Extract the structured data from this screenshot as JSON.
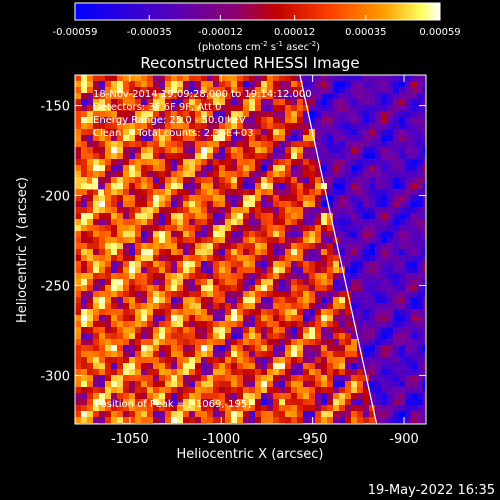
{
  "colorbar": {
    "ticks": [
      "-0.00059",
      "-0.00035",
      "-0.00012",
      "0.00012",
      "0.00035",
      "0.00059"
    ],
    "unit_prefix": "(photons cm",
    "unit_exp1": "-2",
    "unit_mid": " s",
    "unit_exp2": "-1",
    "unit_mid2": " asec",
    "unit_exp3": "-2",
    "unit_suffix": ")"
  },
  "chart_data": {
    "type": "heatmap",
    "title": "Reconstructed RHESSI Image",
    "xlabel": "Heliocentric X (arcsec)",
    "ylabel": "Heliocentric Y (arcsec)",
    "xlim": [
      -1080,
      -888
    ],
    "ylim": [
      -327,
      -133
    ],
    "x_ticks": [
      "-1050",
      "-1000",
      "-950",
      "-900"
    ],
    "x_tick_values": [
      -1050,
      -1000,
      -950,
      -900
    ],
    "y_ticks": [
      "-150",
      "-200",
      "-250",
      "-300"
    ],
    "y_tick_values": [
      -150,
      -200,
      -250,
      -300
    ],
    "value_range": [
      -0.00059,
      0.00059
    ],
    "peak": {
      "x": -1069,
      "y": -195
    },
    "limb_line": {
      "points": [
        [
          -957,
          -133
        ],
        [
          -915,
          -327
        ]
      ]
    },
    "info_lines": [
      "18-Nov-2014 19:09:28.000 to 19:14:12.000",
      "Detectors: 3F 6F 9F, Att 0",
      "Energy Range: 25.0 - 50.0 keV",
      "Clean     Total counts: 2.36E+03"
    ],
    "peak_label": "Position of Peak = [-1069,-195]",
    "colors": [
      "#0000ff",
      "#4b00c8",
      "#7a009a",
      "#c00000",
      "#ff5000",
      "#ffa000",
      "#ffff80",
      "#ffffff"
    ]
  },
  "footer": {
    "timestamp": "19-May-2022 16:35"
  }
}
